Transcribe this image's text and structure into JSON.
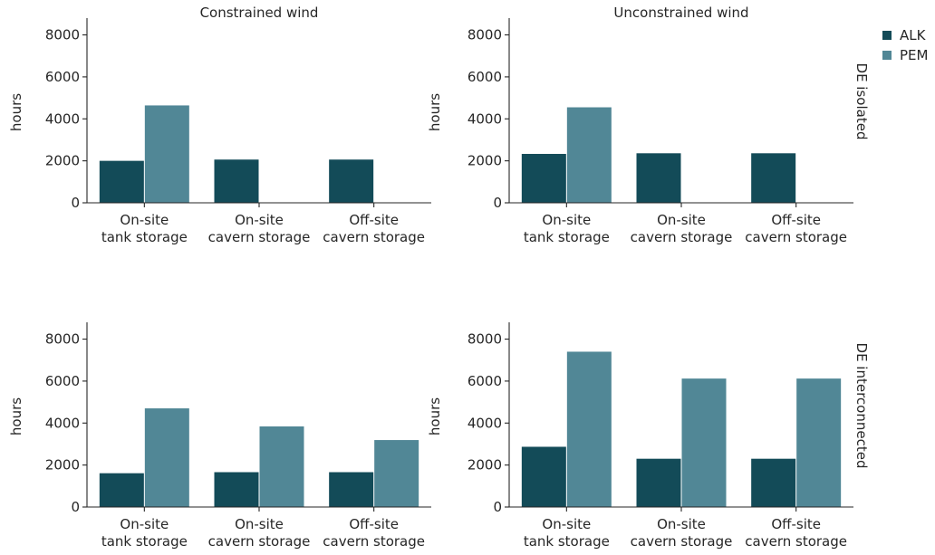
{
  "colors": {
    "ALK": "#134b58",
    "PEM": "#518796"
  },
  "legend": [
    {
      "name": "ALK",
      "color": "#134b58"
    },
    {
      "name": "PEM",
      "color": "#518796"
    }
  ],
  "columns": [
    "Constrained wind",
    "Unconstrained wind"
  ],
  "rows": [
    "DE isolated",
    "DE interconnected"
  ],
  "chart_data": [
    {
      "type": "bar",
      "title": "Constrained wind",
      "row_label": "",
      "ylabel": "hours",
      "ylim": [
        0,
        8800
      ],
      "yticks": [
        "0",
        "2000",
        "4000",
        "6000",
        "8000"
      ],
      "categories": [
        [
          "On-site",
          "tank storage"
        ],
        [
          "On-site",
          "cavern storage"
        ],
        [
          "Off-site",
          "cavern storage"
        ]
      ],
      "series": [
        {
          "name": "ALK",
          "values": [
            2000,
            2060,
            2060
          ]
        },
        {
          "name": "PEM",
          "values": [
            4640,
            20,
            20
          ]
        }
      ]
    },
    {
      "type": "bar",
      "title": "Unconstrained wind",
      "row_label": "DE isolated",
      "ylabel": "hours",
      "ylim": [
        0,
        8800
      ],
      "yticks": [
        "0",
        "2000",
        "4000",
        "6000",
        "8000"
      ],
      "categories": [
        [
          "On-site",
          "tank storage"
        ],
        [
          "On-site",
          "cavern storage"
        ],
        [
          "Off-site",
          "cavern storage"
        ]
      ],
      "series": [
        {
          "name": "ALK",
          "values": [
            2330,
            2360,
            2360
          ]
        },
        {
          "name": "PEM",
          "values": [
            4550,
            20,
            20
          ]
        }
      ]
    },
    {
      "type": "bar",
      "title": "",
      "row_label": "",
      "ylabel": "hours",
      "ylim": [
        0,
        8800
      ],
      "yticks": [
        "0",
        "2000",
        "4000",
        "6000",
        "8000"
      ],
      "categories": [
        [
          "On-site",
          "tank storage"
        ],
        [
          "On-site",
          "cavern storage"
        ],
        [
          "Off-site",
          "cavern storage"
        ]
      ],
      "series": [
        {
          "name": "ALK",
          "values": [
            1610,
            1660,
            1660
          ]
        },
        {
          "name": "PEM",
          "values": [
            4700,
            3840,
            3190
          ]
        }
      ]
    },
    {
      "type": "bar",
      "title": "",
      "row_label": "DE interconnected",
      "ylabel": "hours",
      "ylim": [
        0,
        8800
      ],
      "yticks": [
        "0",
        "2000",
        "4000",
        "6000",
        "8000"
      ],
      "categories": [
        [
          "On-site",
          "tank storage"
        ],
        [
          "On-site",
          "cavern storage"
        ],
        [
          "Off-site",
          "cavern storage"
        ]
      ],
      "series": [
        {
          "name": "ALK",
          "values": [
            2870,
            2300,
            2300
          ]
        },
        {
          "name": "PEM",
          "values": [
            7400,
            6120,
            6120
          ]
        }
      ]
    }
  ]
}
